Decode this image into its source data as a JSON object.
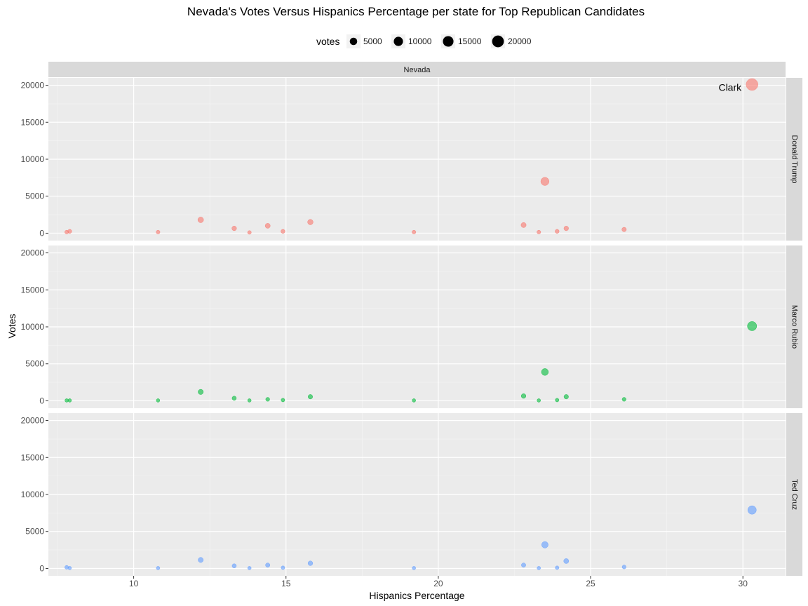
{
  "chart_data": {
    "type": "scatter",
    "title": "Nevada's Votes Versus Hispanics Percentage per state for Top Republican Candidates",
    "xlabel": "Hispanics Percentage",
    "ylabel": "Votes",
    "xlim": [
      7.2,
      31.4
    ],
    "ylim": [
      -1000,
      21000
    ],
    "x_ticks": [
      10,
      15,
      20,
      25,
      30
    ],
    "y_ticks": [
      0,
      5000,
      10000,
      15000,
      20000
    ],
    "grid": true,
    "facet_column_label": "Nevada",
    "legend": {
      "title": "votes",
      "placement": "top",
      "sizes": [
        5000,
        10000,
        15000,
        20000
      ],
      "labels": [
        "5000",
        "10000",
        "15000",
        "20000"
      ]
    },
    "annotations": [
      {
        "text": "Clark",
        "panel": "Donald Trump",
        "x": 29.2,
        "y": 19700
      }
    ],
    "panels": [
      {
        "name": "Donald Trump",
        "color": "#F8766D",
        "points": [
          {
            "x": 7.8,
            "y": 150
          },
          {
            "x": 7.9,
            "y": 250
          },
          {
            "x": 10.8,
            "y": 150
          },
          {
            "x": 12.2,
            "y": 1800
          },
          {
            "x": 13.3,
            "y": 650
          },
          {
            "x": 13.8,
            "y": 100
          },
          {
            "x": 14.4,
            "y": 1000
          },
          {
            "x": 14.9,
            "y": 250
          },
          {
            "x": 15.8,
            "y": 1500
          },
          {
            "x": 19.2,
            "y": 150
          },
          {
            "x": 22.8,
            "y": 1100
          },
          {
            "x": 23.3,
            "y": 150
          },
          {
            "x": 23.5,
            "y": 7000
          },
          {
            "x": 23.9,
            "y": 250
          },
          {
            "x": 24.2,
            "y": 650
          },
          {
            "x": 26.1,
            "y": 500
          },
          {
            "x": 30.3,
            "y": 20100
          }
        ]
      },
      {
        "name": "Marco Rubio",
        "color": "#00BA38",
        "points": [
          {
            "x": 7.8,
            "y": 50
          },
          {
            "x": 7.9,
            "y": 50
          },
          {
            "x": 10.8,
            "y": 50
          },
          {
            "x": 12.2,
            "y": 1200
          },
          {
            "x": 13.3,
            "y": 350
          },
          {
            "x": 13.8,
            "y": 50
          },
          {
            "x": 14.4,
            "y": 200
          },
          {
            "x": 14.9,
            "y": 100
          },
          {
            "x": 15.8,
            "y": 550
          },
          {
            "x": 19.2,
            "y": 50
          },
          {
            "x": 22.8,
            "y": 650
          },
          {
            "x": 23.3,
            "y": 50
          },
          {
            "x": 23.5,
            "y": 3900
          },
          {
            "x": 23.9,
            "y": 100
          },
          {
            "x": 24.2,
            "y": 550
          },
          {
            "x": 26.1,
            "y": 200
          },
          {
            "x": 30.3,
            "y": 10100
          }
        ]
      },
      {
        "name": "Ted Cruz",
        "color": "#619CFF",
        "points": [
          {
            "x": 7.8,
            "y": 150
          },
          {
            "x": 7.9,
            "y": 50
          },
          {
            "x": 10.8,
            "y": 50
          },
          {
            "x": 12.2,
            "y": 1150
          },
          {
            "x": 13.3,
            "y": 350
          },
          {
            "x": 13.8,
            "y": 50
          },
          {
            "x": 14.4,
            "y": 450
          },
          {
            "x": 14.9,
            "y": 100
          },
          {
            "x": 15.8,
            "y": 700
          },
          {
            "x": 19.2,
            "y": 50
          },
          {
            "x": 22.8,
            "y": 450
          },
          {
            "x": 23.3,
            "y": 50
          },
          {
            "x": 23.5,
            "y": 3200
          },
          {
            "x": 23.9,
            "y": 100
          },
          {
            "x": 24.2,
            "y": 1000
          },
          {
            "x": 26.1,
            "y": 200
          },
          {
            "x": 30.3,
            "y": 7900
          }
        ]
      }
    ]
  }
}
